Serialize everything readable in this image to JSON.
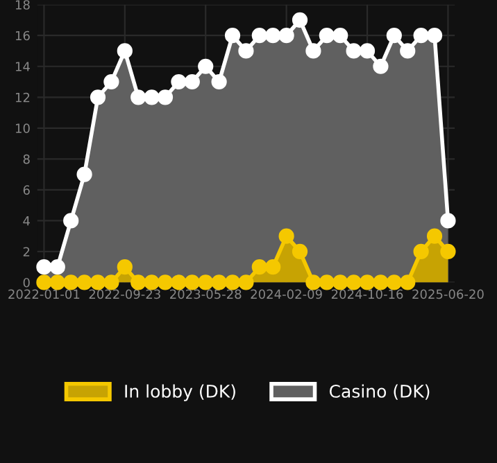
{
  "chart_data": {
    "type": "area",
    "categories": [
      "2022-01-01",
      null,
      null,
      null,
      null,
      null,
      "2022-09-23",
      null,
      null,
      null,
      null,
      null,
      "2023-05-28",
      null,
      null,
      null,
      null,
      null,
      "2024-02-09",
      null,
      null,
      null,
      null,
      null,
      "2024-10-16",
      null,
      null,
      null,
      null,
      null,
      "2025-06-20"
    ],
    "series": [
      {
        "name": "Casino (DK)",
        "color": "#ffffff",
        "values": [
          1,
          1,
          4,
          7,
          12,
          13,
          15,
          12,
          12,
          12,
          13,
          13,
          14,
          13,
          16,
          15,
          16,
          16,
          16,
          17,
          15,
          16,
          16,
          15,
          15,
          14,
          16,
          15,
          16,
          16,
          4
        ]
      },
      {
        "name": "In lobby (DK)",
        "color": "#f5c800",
        "values": [
          0,
          0,
          0,
          0,
          0,
          0,
          1,
          0,
          0,
          0,
          0,
          0,
          0,
          0,
          0,
          0,
          1,
          1,
          3,
          2,
          0,
          0,
          0,
          0,
          0,
          0,
          0,
          0,
          2,
          3,
          2
        ]
      }
    ],
    "ylim": [
      0,
      18
    ],
    "yticks": [
      0,
      2,
      4,
      6,
      8,
      10,
      12,
      14,
      16,
      18
    ],
    "grid": true,
    "legend": "bottom",
    "marker": "circle",
    "line_style": "solid"
  }
}
